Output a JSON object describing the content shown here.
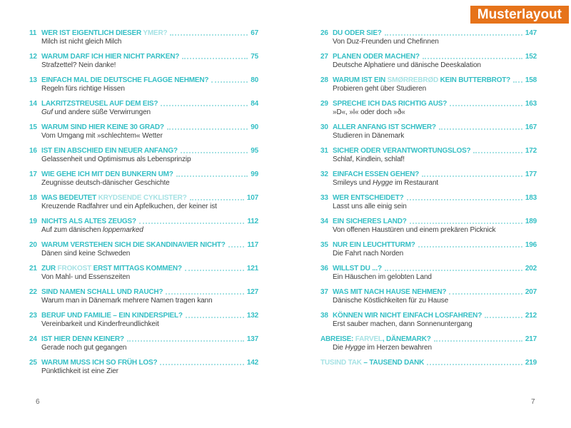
{
  "badge": {
    "label": "Musterlayout"
  },
  "colors": {
    "accent": "#35bfc5",
    "accent_light": "#a6e2e4",
    "badge_bg": "#e6731a",
    "text": "#3d3d3d"
  },
  "pages": {
    "left": {
      "folio": "6",
      "entries": [
        {
          "num": "11",
          "t1": "WER IST EIGENTLICH DIESER ",
          "tl": "YMER?",
          "t2": "",
          "page": "67",
          "s1": "Milch ist nicht gleich Milch",
          "si": "",
          "s2": ""
        },
        {
          "num": "12",
          "t1": "WARUM DARF ICH HIER NICHT PARKEN?",
          "tl": "",
          "t2": "",
          "page": "75",
          "s1": "Strafzettel? Nein danke!",
          "si": "",
          "s2": ""
        },
        {
          "num": "13",
          "t1": "EINFACH MAL DIE DEUTSCHE FLAGGE NEHMEN?",
          "tl": "",
          "t2": "",
          "page": "80",
          "s1": "Regeln fürs richtige Hissen",
          "si": "",
          "s2": ""
        },
        {
          "num": "14",
          "t1": "LAKRITZSTREUSEL AUF DEM EIS?",
          "tl": "",
          "t2": "",
          "page": "84",
          "s1": "",
          "si": "Guf",
          "s2": " und andere süße Verwirrungen"
        },
        {
          "num": "15",
          "t1": "WARUM SIND HIER KEINE 30 GRAD?",
          "tl": "",
          "t2": "",
          "page": "90",
          "s1": "Vom Umgang mit »schlechtem« Wetter",
          "si": "",
          "s2": ""
        },
        {
          "num": "16",
          "t1": "IST EIN ABSCHIED EIN NEUER ANFANG?",
          "tl": "",
          "t2": "",
          "page": "95",
          "s1": "Gelassenheit und Optimismus als Lebensprinzip",
          "si": "",
          "s2": ""
        },
        {
          "num": "17",
          "t1": "WIE GEHE ICH MIT DEN BUNKERN UM?",
          "tl": "",
          "t2": "",
          "page": "99",
          "s1": "Zeugnisse deutsch-dänischer Geschichte",
          "si": "",
          "s2": ""
        },
        {
          "num": "18",
          "t1": "WAS BEDEUTET ",
          "tl": "KRYDSENDE CYKLISTER?",
          "t2": "",
          "page": "107",
          "s1": "Kreuzende Radfahrer und ein Apfelkuchen, der keiner ist",
          "si": "",
          "s2": ""
        },
        {
          "num": "19",
          "t1": "NICHTS ALS ALTES ZEUGS?",
          "tl": "",
          "t2": "",
          "page": "112",
          "s1": "Auf zum dänischen ",
          "si": "loppemarked",
          "s2": ""
        },
        {
          "num": "20",
          "t1": "WARUM VERSTEHEN SICH DIE SKANDINAVIER NICHT?",
          "tl": "",
          "t2": "",
          "page": "117",
          "s1": "Dänen sind keine Schweden",
          "si": "",
          "s2": ""
        },
        {
          "num": "21",
          "t1": "ZUR ",
          "tl": "FROKOST ",
          "t2": "ERST MITTAGS KOMMEN?",
          "page": "121",
          "s1": "Von Mahl- und Essenszeiten",
          "si": "",
          "s2": ""
        },
        {
          "num": "22",
          "t1": "SIND NAMEN SCHALL UND RAUCH?",
          "tl": "",
          "t2": "",
          "page": "127",
          "s1": "Warum man in Dänemark mehrere Namen tragen kann",
          "si": "",
          "s2": ""
        },
        {
          "num": "23",
          "t1": "BERUF UND FAMILIE – EIN KINDERSPIEL?",
          "tl": "",
          "t2": "",
          "page": "132",
          "s1": "Vereinbarkeit und Kinderfreundlichkeit",
          "si": "",
          "s2": ""
        },
        {
          "num": "24",
          "t1": "IST HIER DENN KEINER?",
          "tl": "",
          "t2": "",
          "page": "137",
          "s1": "Gerade noch gut gegangen",
          "si": "",
          "s2": ""
        },
        {
          "num": "25",
          "t1": "WARUM MUSS ICH SO FRÜH LOS?",
          "tl": "",
          "t2": "",
          "page": "142",
          "s1": "Pünktlichkeit ist eine Zier",
          "si": "",
          "s2": ""
        }
      ]
    },
    "right": {
      "folio": "7",
      "entries": [
        {
          "num": "26",
          "t1": "DU ODER SIE?",
          "tl": "",
          "t2": "",
          "page": "147",
          "s1": "Von Duz-Freunden und Chefinnen",
          "si": "",
          "s2": ""
        },
        {
          "num": "27",
          "t1": "PLANEN ODER MACHEN?",
          "tl": "",
          "t2": "",
          "page": "152",
          "s1": "Deutsche Alphatiere und dänische Deeskalation",
          "si": "",
          "s2": ""
        },
        {
          "num": "28",
          "t1": "WARUM IST EIN ",
          "tl": "SMØRREBRØD ",
          "t2": "KEIN BUTTERBROT?",
          "page": "158",
          "s1": "Probieren geht über Studieren",
          "si": "",
          "s2": ""
        },
        {
          "num": "29",
          "t1": "SPRECHE ICH DAS RICHTIG AUS?",
          "tl": "",
          "t2": "",
          "page": "163",
          "s1": "»D«, »l« oder doch »ð«",
          "si": "",
          "s2": ""
        },
        {
          "num": "30",
          "t1": "ALLER ANFANG IST SCHWER?",
          "tl": "",
          "t2": "",
          "page": "167",
          "s1": "Studieren in Dänemark",
          "si": "",
          "s2": ""
        },
        {
          "num": "31",
          "t1": "SICHER ODER VERANTWORTUNGSLOS?",
          "tl": "",
          "t2": "",
          "page": "172",
          "s1": "Schlaf, Kindlein, schlaf!",
          "si": "",
          "s2": ""
        },
        {
          "num": "32",
          "t1": "EINFACH ESSEN GEHEN?",
          "tl": "",
          "t2": "",
          "page": "177",
          "s1": "Smileys und ",
          "si": "Hygge",
          "s2": " im Restaurant"
        },
        {
          "num": "33",
          "t1": "WER ENTSCHEIDET?",
          "tl": "",
          "t2": "",
          "page": "183",
          "s1": "Lasst uns alle einig sein",
          "si": "",
          "s2": ""
        },
        {
          "num": "34",
          "t1": "EIN SICHERES LAND?",
          "tl": "",
          "t2": "",
          "page": "189",
          "s1": "Von offenen Haustüren und einem prekären Picknick",
          "si": "",
          "s2": ""
        },
        {
          "num": "35",
          "t1": "NUR EIN LEUCHTTURM?",
          "tl": "",
          "t2": "",
          "page": "196",
          "s1": "Die Fahrt nach Norden",
          "si": "",
          "s2": ""
        },
        {
          "num": "36",
          "t1": "WILLST DU ...?",
          "tl": "",
          "t2": "",
          "page": "202",
          "s1": "Ein Häuschen im gelobten Land",
          "si": "",
          "s2": ""
        },
        {
          "num": "37",
          "t1": "WAS MIT NACH HAUSE NEHMEN?",
          "tl": "",
          "t2": "",
          "page": "207",
          "s1": "Dänische Köstlichkeiten für zu Hause",
          "si": "",
          "s2": ""
        },
        {
          "num": "38",
          "t1": "KÖNNEN WIR NICHT EINFACH LOSFAHREN?",
          "tl": "",
          "t2": "",
          "page": "212",
          "s1": "Erst sauber machen, dann Sonnenuntergang",
          "si": "",
          "s2": ""
        },
        {
          "num": "",
          "t1": "ABREISE: ",
          "tl": "FARVEL",
          "t2": ", DÄNEMARK?",
          "page": "217",
          "s1": "Die ",
          "si": "Hygge",
          "s2": " im Herzen bewahren"
        },
        {
          "num": "",
          "t1": "",
          "tl": "TUSIND TAK ",
          "t2": "– TAUSEND DANK",
          "page": "219",
          "s1": "",
          "si": "",
          "s2": ""
        }
      ]
    }
  }
}
